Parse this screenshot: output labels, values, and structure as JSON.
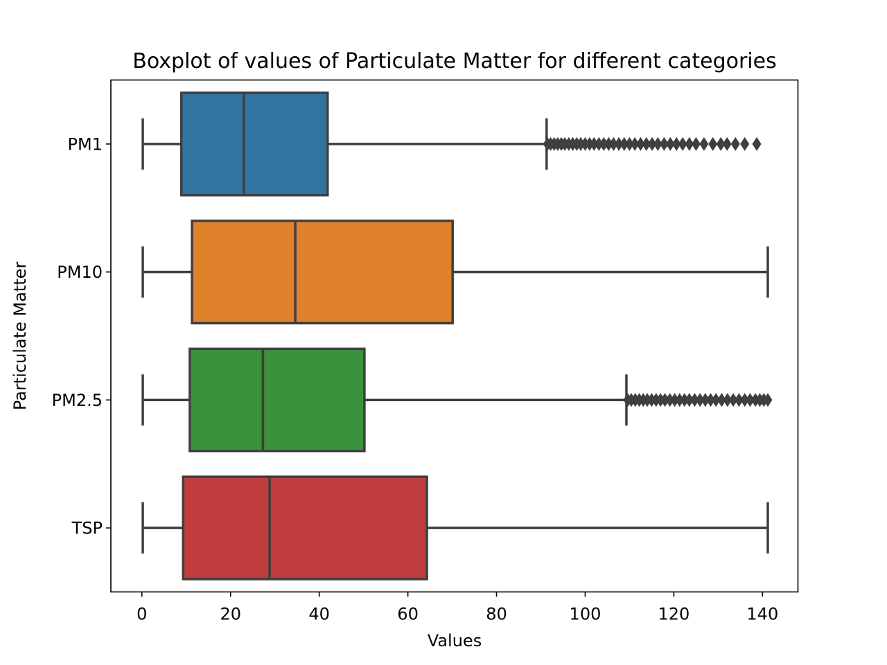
{
  "chart_data": {
    "type": "boxplot",
    "orientation": "horizontal",
    "title": "Boxplot of values of Particulate Matter for different categories",
    "xlabel": "Values",
    "ylabel": "Particulate Matter",
    "xlim": [
      -7,
      148
    ],
    "xticks": [
      0,
      20,
      40,
      60,
      80,
      100,
      120,
      140
    ],
    "grid": false,
    "categories": [
      "PM1",
      "PM10",
      "PM2.5",
      "TSP"
    ],
    "series": [
      {
        "category": "PM1",
        "color": "#3274a1",
        "whisker_low": 0.2,
        "q1": 8.9,
        "median": 23.0,
        "q3": 41.9,
        "whisker_high": 91.3,
        "outliers": [
          91.5,
          92.2,
          93.0,
          93.8,
          94.6,
          95.4,
          96.3,
          97.2,
          98.1,
          99.0,
          100.0,
          101.0,
          102.0,
          103.1,
          104.2,
          105.3,
          106.4,
          107.6,
          108.8,
          110.0,
          111.2,
          112.5,
          113.8,
          115.1,
          116.4,
          117.8,
          119.2,
          120.6,
          122.0,
          123.5,
          125.0,
          126.8,
          128.8,
          130.6,
          132.0,
          133.9,
          136.0,
          138.7
        ]
      },
      {
        "category": "PM10",
        "color": "#e1812c",
        "whisker_low": 0.2,
        "q1": 11.3,
        "median": 34.6,
        "q3": 70.1,
        "whisker_high": 141.2,
        "outliers": []
      },
      {
        "category": "PM2.5",
        "color": "#3a923a",
        "whisker_low": 0.2,
        "q1": 10.8,
        "median": 27.3,
        "q3": 50.2,
        "whisker_high": 109.3,
        "outliers": [
          109.6,
          110.4,
          111.3,
          112.2,
          113.1,
          114.0,
          115.0,
          116.0,
          117.0,
          118.0,
          119.1,
          120.2,
          121.3,
          122.4,
          123.5,
          124.7,
          125.9,
          127.1,
          128.3,
          129.5,
          130.8,
          132.1,
          133.4,
          134.7,
          136.0,
          137.2,
          138.4,
          139.4,
          140.3,
          141.2
        ]
      },
      {
        "category": "TSP",
        "color": "#c03d3e",
        "whisker_low": 0.2,
        "q1": 9.3,
        "median": 28.8,
        "q3": 64.3,
        "whisker_high": 141.2,
        "outliers": []
      }
    ],
    "edge_color": "#3f3f3f"
  }
}
